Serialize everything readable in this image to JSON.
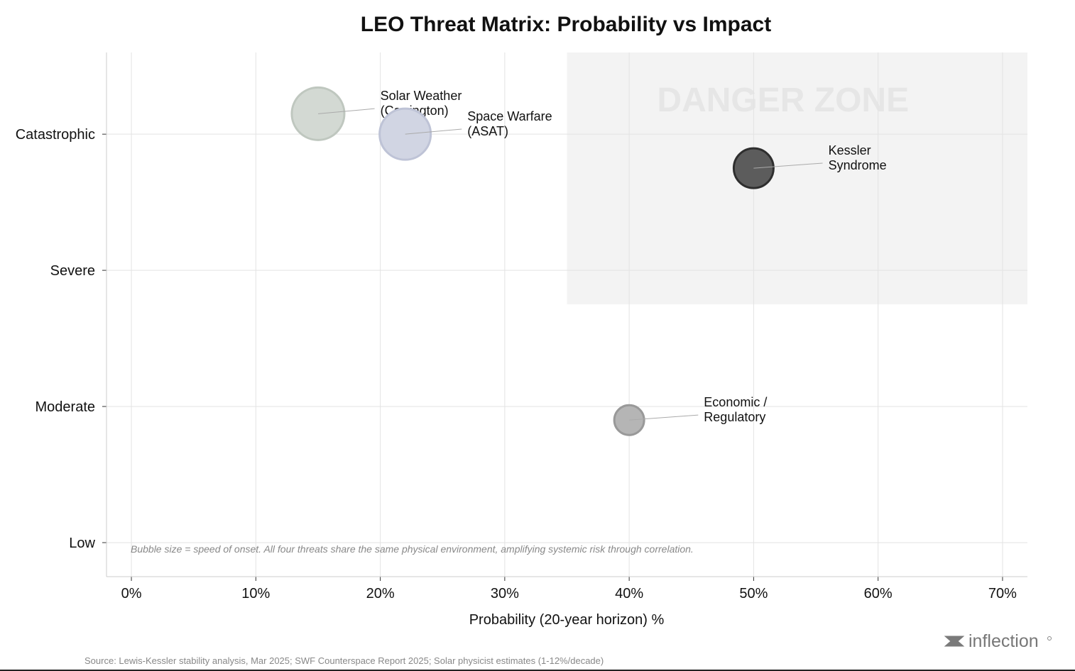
{
  "chart_data": {
    "type": "scatter",
    "title": "LEO Threat Matrix: Probability vs Impact",
    "xlabel": "Probability (20-year horizon) %",
    "ylabel": "",
    "xlim": [
      -2,
      72
    ],
    "ylim": [
      0.75,
      4.6
    ],
    "grid": true,
    "x_ticks": [
      0,
      10,
      20,
      30,
      40,
      50,
      60,
      70
    ],
    "x_tick_labels": [
      "0%",
      "10%",
      "20%",
      "30%",
      "40%",
      "50%",
      "60%",
      "70%"
    ],
    "y_ticks": [
      1,
      2,
      3,
      4
    ],
    "y_tick_labels": [
      "Low",
      "Moderate",
      "Severe",
      "Catastrophic"
    ],
    "danger_zone": {
      "label": "DANGER ZONE",
      "x_range": [
        35,
        72
      ],
      "y_range": [
        2.75,
        4.6
      ]
    },
    "points": [
      {
        "label_lines": [
          "Solar Weather",
          "(Carrington)"
        ],
        "x": 15,
        "y": 4.15,
        "onset_size": 37,
        "fill": "#d3d9d3",
        "stroke": "#bfc7bf",
        "label_x": 20,
        "label_y": 4.25
      },
      {
        "label_lines": [
          "Space Warfare",
          "(ASAT)"
        ],
        "x": 22,
        "y": 4.0,
        "onset_size": 36,
        "fill": "#d1d5e3",
        "stroke": "#bec3d6",
        "label_x": 27,
        "label_y": 4.1
      },
      {
        "label_lines": [
          "Kessler",
          "Syndrome"
        ],
        "x": 50,
        "y": 3.75,
        "onset_size": 28,
        "fill": "#5c5c5c",
        "stroke": "#2e2e2e",
        "label_x": 56,
        "label_y": 3.85
      },
      {
        "label_lines": [
          "Economic /",
          "Regulatory"
        ],
        "x": 40,
        "y": 1.9,
        "onset_size": 21,
        "fill": "#b5b5b5",
        "stroke": "#999999",
        "label_x": 46,
        "label_y": 2.0
      }
    ],
    "annotation": "Bubble size = speed of onset. All four threats share the same physical environment, amplifying systemic risk through correlation."
  },
  "source": "Source: Lewis-Kessler stability analysis, Mar 2025; SWF Counterspace Report 2025; Solar physicist estimates (1-12%/decade)",
  "logo": "inflection"
}
